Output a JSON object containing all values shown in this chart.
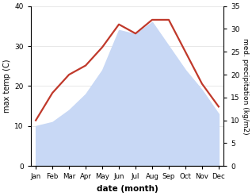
{
  "months": [
    "Jan",
    "Feb",
    "Mar",
    "Apr",
    "May",
    "Jun",
    "Jul",
    "Aug",
    "Sep",
    "Oct",
    "Nov",
    "Dec"
  ],
  "month_positions": [
    0,
    1,
    2,
    3,
    4,
    5,
    6,
    7,
    8,
    9,
    10,
    11
  ],
  "temp": [
    10,
    11,
    14,
    18,
    24,
    34,
    33,
    36,
    30,
    24,
    19,
    13
  ],
  "precip": [
    10,
    16,
    20,
    22,
    26,
    31,
    29,
    32,
    32,
    25,
    18,
    13
  ],
  "temp_fill_color": "#c8d8f5",
  "precip_color": "#c0392b",
  "ylim_temp": [
    0,
    40
  ],
  "ylim_precip": [
    0,
    35
  ],
  "yticks_temp": [
    0,
    10,
    20,
    30,
    40
  ],
  "yticks_precip": [
    0,
    5,
    10,
    15,
    20,
    25,
    30,
    35
  ],
  "ylabel_left": "max temp (C)",
  "ylabel_right": "med. precipitation (kg/m2)",
  "xlabel": "date (month)",
  "bg_color": "#ffffff"
}
